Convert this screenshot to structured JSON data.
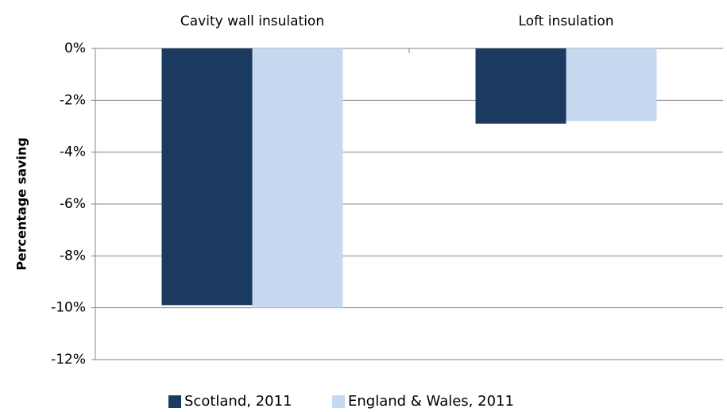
{
  "chart_data": {
    "type": "bar",
    "y_label": "Percentage saving",
    "categories": [
      "Cavity wall insulation",
      "Loft insulation"
    ],
    "series": [
      {
        "name": "Scotland, 2011",
        "color": "#1b3a5f",
        "values": [
          -9.9,
          -2.9
        ]
      },
      {
        "name": "England & Wales, 2011",
        "color": "#c6d9f0",
        "values": [
          -10.0,
          -2.8
        ]
      }
    ],
    "ylim": [
      -12,
      0
    ],
    "yticks": [
      {
        "value": 0,
        "label": "0%"
      },
      {
        "value": -2,
        "label": "-2%"
      },
      {
        "value": -4,
        "label": "-4%"
      },
      {
        "value": -6,
        "label": "-6%"
      },
      {
        "value": -8,
        "label": "-8%"
      },
      {
        "value": -10,
        "label": "-10%"
      },
      {
        "value": -12,
        "label": "-12%"
      }
    ],
    "grid": true,
    "legend": "bottom"
  }
}
